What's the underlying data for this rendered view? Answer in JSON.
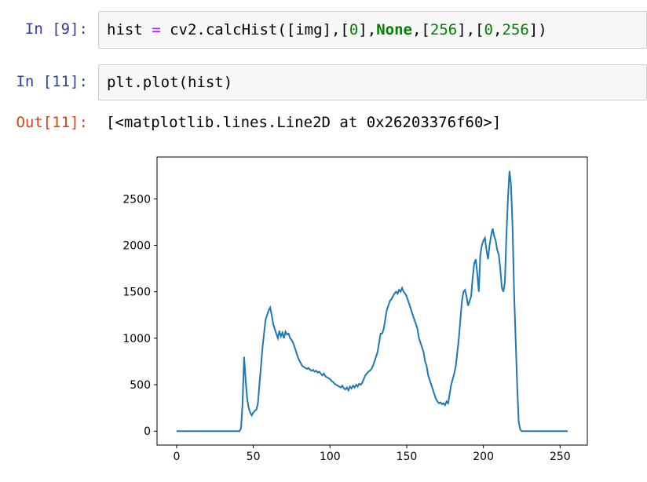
{
  "cells": [
    {
      "prompt": "In [9]:",
      "code": [
        {
          "text": "hist "
        },
        {
          "text": "=",
          "color": "#aa22ff"
        },
        {
          "text": " cv2.calcHist([img],["
        },
        {
          "text": "0",
          "color": "#008000"
        },
        {
          "text": "],"
        },
        {
          "text": "None",
          "color": "#008000",
          "bold": true
        },
        {
          "text": ",["
        },
        {
          "text": "256",
          "color": "#008000"
        },
        {
          "text": "],["
        },
        {
          "text": "0",
          "color": "#008000"
        },
        {
          "text": ","
        },
        {
          "text": "256",
          "color": "#008000"
        },
        {
          "text": "])"
        }
      ]
    },
    {
      "prompt": "In [11]:",
      "code": [
        {
          "text": "plt.plot(hist)"
        }
      ],
      "out_prompt": "Out[11]:",
      "output": "[<matplotlib.lines.Line2D at 0x26203376f60>]"
    }
  ],
  "chart_data": {
    "type": "line",
    "x": [
      0,
      1,
      2,
      3,
      4,
      5,
      6,
      7,
      8,
      9,
      10,
      11,
      12,
      13,
      14,
      15,
      16,
      17,
      18,
      19,
      20,
      21,
      22,
      23,
      24,
      25,
      26,
      27,
      28,
      29,
      30,
      31,
      32,
      33,
      34,
      35,
      36,
      37,
      38,
      39,
      40,
      41,
      42,
      43,
      44,
      45,
      46,
      47,
      48,
      49,
      50,
      51,
      52,
      53,
      54,
      55,
      56,
      57,
      58,
      59,
      60,
      61,
      62,
      63,
      64,
      65,
      66,
      67,
      68,
      69,
      70,
      71,
      72,
      73,
      74,
      75,
      76,
      77,
      78,
      79,
      80,
      81,
      82,
      83,
      84,
      85,
      86,
      87,
      88,
      89,
      90,
      91,
      92,
      93,
      94,
      95,
      96,
      97,
      98,
      99,
      100,
      101,
      102,
      103,
      104,
      105,
      106,
      107,
      108,
      109,
      110,
      111,
      112,
      113,
      114,
      115,
      116,
      117,
      118,
      119,
      120,
      121,
      122,
      123,
      124,
      125,
      126,
      127,
      128,
      129,
      130,
      131,
      132,
      133,
      134,
      135,
      136,
      137,
      138,
      139,
      140,
      141,
      142,
      143,
      144,
      145,
      146,
      147,
      148,
      149,
      150,
      151,
      152,
      153,
      154,
      155,
      156,
      157,
      158,
      159,
      160,
      161,
      162,
      163,
      164,
      165,
      166,
      167,
      168,
      169,
      170,
      171,
      172,
      173,
      174,
      175,
      176,
      177,
      178,
      179,
      180,
      181,
      182,
      183,
      184,
      185,
      186,
      187,
      188,
      189,
      190,
      191,
      192,
      193,
      194,
      195,
      196,
      197,
      198,
      199,
      200,
      201,
      202,
      203,
      204,
      205,
      206,
      207,
      208,
      209,
      210,
      211,
      212,
      213,
      214,
      215,
      216,
      217,
      218,
      219,
      220,
      221,
      222,
      223,
      224,
      225,
      226,
      227,
      228,
      229,
      230,
      231,
      232,
      233,
      234,
      235,
      236,
      237,
      238,
      239,
      240,
      241,
      242,
      243,
      244,
      245,
      246,
      247,
      248,
      249,
      250,
      251,
      252,
      253,
      254,
      255
    ],
    "series": [
      {
        "color": "#1f77b4",
        "values": [
          0,
          0,
          0,
          0,
          0,
          0,
          0,
          0,
          0,
          0,
          0,
          0,
          0,
          0,
          0,
          0,
          0,
          0,
          0,
          0,
          0,
          0,
          0,
          0,
          0,
          0,
          0,
          0,
          0,
          0,
          0,
          0,
          0,
          0,
          0,
          0,
          0,
          0,
          0,
          0,
          0,
          0,
          30,
          300,
          800,
          550,
          350,
          250,
          200,
          170,
          200,
          220,
          230,
          300,
          500,
          700,
          900,
          1050,
          1200,
          1250,
          1300,
          1330,
          1250,
          1150,
          1100,
          1050,
          1000,
          1080,
          1020,
          1060,
          1000,
          1070,
          1040,
          1050,
          1000,
          980,
          950,
          900,
          850,
          800,
          760,
          730,
          700,
          690,
          680,
          670,
          680,
          660,
          650,
          660,
          640,
          650,
          630,
          640,
          620,
          600,
          620,
          590,
          580,
          570,
          560,
          540,
          530,
          510,
          500,
          490,
          480,
          470,
          490,
          460,
          450,
          470,
          440,
          480,
          460,
          490,
          470,
          500,
          480,
          510,
          500,
          520,
          560,
          600,
          620,
          640,
          650,
          670,
          700,
          750,
          800,
          850,
          950,
          1050,
          1050,
          1100,
          1200,
          1300,
          1350,
          1400,
          1420,
          1450,
          1480,
          1500,
          1480,
          1520,
          1500,
          1540,
          1500,
          1480,
          1450,
          1400,
          1350,
          1300,
          1250,
          1200,
          1150,
          1100,
          1000,
          950,
          900,
          850,
          750,
          700,
          600,
          550,
          500,
          450,
          400,
          350,
          320,
          300,
          310,
          290,
          300,
          280,
          320,
          300,
          400,
          500,
          560,
          620,
          700,
          850,
          1000,
          1200,
          1400,
          1500,
          1520,
          1450,
          1350,
          1400,
          1450,
          1650,
          1800,
          1850,
          1700,
          1500,
          1900,
          2000,
          2050,
          2080,
          1950,
          1850,
          2000,
          2100,
          2180,
          2100,
          2050,
          1950,
          1900,
          1750,
          1550,
          1500,
          1600,
          2100,
          2500,
          2800,
          2650,
          2200,
          1500,
          1000,
          500,
          100,
          20,
          0,
          0,
          0,
          0,
          0,
          0,
          0,
          0,
          0,
          0,
          0,
          0,
          0,
          0,
          0,
          0,
          0,
          0,
          0,
          0,
          0,
          0,
          0,
          0,
          0,
          0,
          0,
          0,
          0,
          0,
          0
        ]
      }
    ],
    "xlim": [
      -12.75,
      267.75
    ],
    "ylim": [
      -150,
      2950
    ],
    "xticks": [
      0,
      50,
      100,
      150,
      200,
      250
    ],
    "yticks": [
      0,
      500,
      1000,
      1500,
      2000,
      2500
    ]
  }
}
